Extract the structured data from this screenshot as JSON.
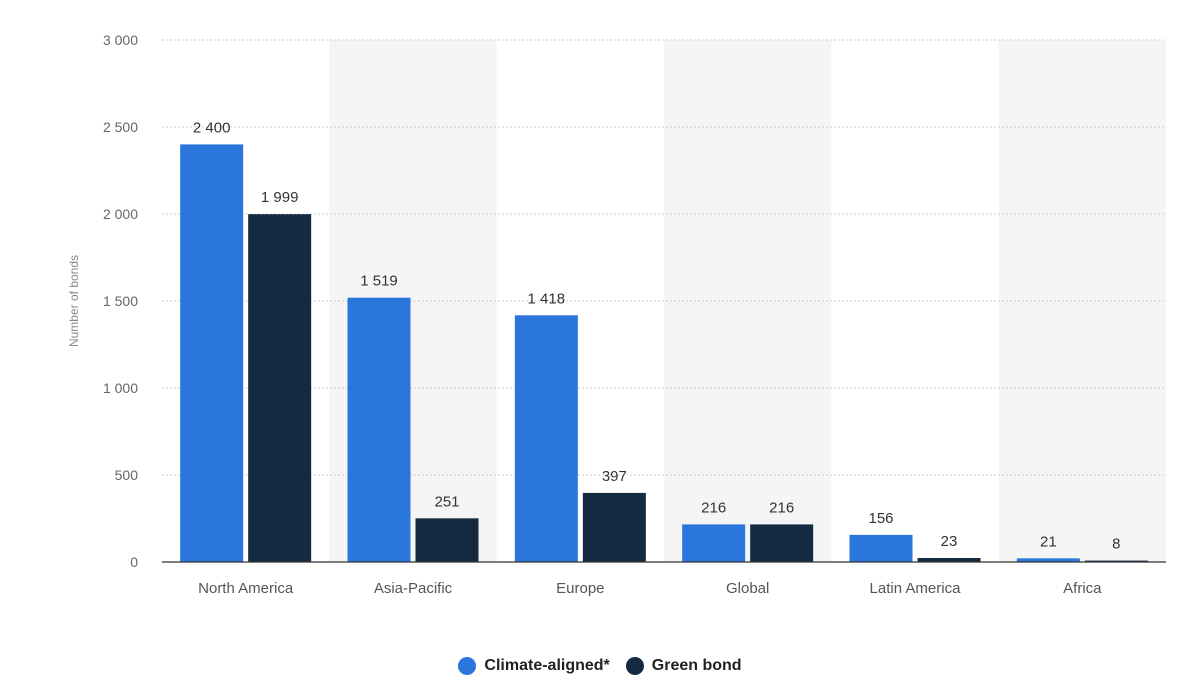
{
  "colors": {
    "climate_aligned": "#2B76DD",
    "green_bond": "#132A40",
    "band": "#F5F5F5",
    "grid": "#CCCCCC",
    "axis": "#333333"
  },
  "legend": {
    "items": [
      {
        "label": "Climate-aligned*",
        "color": "#2B76DD"
      },
      {
        "label": "Green bond",
        "color": "#132A40"
      }
    ]
  },
  "chart_data": {
    "type": "bar",
    "title": "",
    "xlabel": "",
    "ylabel": "Number of bonds",
    "ylim": [
      0,
      3000
    ],
    "yticks": [
      0,
      500,
      1000,
      1500,
      2000,
      2500,
      3000
    ],
    "ytick_labels": [
      "0",
      "500",
      "1 000",
      "1 500",
      "2 000",
      "2 500",
      "3 000"
    ],
    "grid": true,
    "legend_position": "bottom",
    "categories": [
      "North America",
      "Asia-Pacific",
      "Europe",
      "Global",
      "Latin America",
      "Africa"
    ],
    "series": [
      {
        "name": "Climate-aligned*",
        "values": [
          2400,
          1519,
          1418,
          216,
          156,
          21
        ],
        "labels": [
          "2 400",
          "1 519",
          "1 418",
          "216",
          "156",
          "21"
        ]
      },
      {
        "name": "Green bond",
        "values": [
          1999,
          251,
          397,
          216,
          23,
          8
        ],
        "labels": [
          "1 999",
          "251",
          "397",
          "216",
          "23",
          "8"
        ]
      }
    ]
  }
}
